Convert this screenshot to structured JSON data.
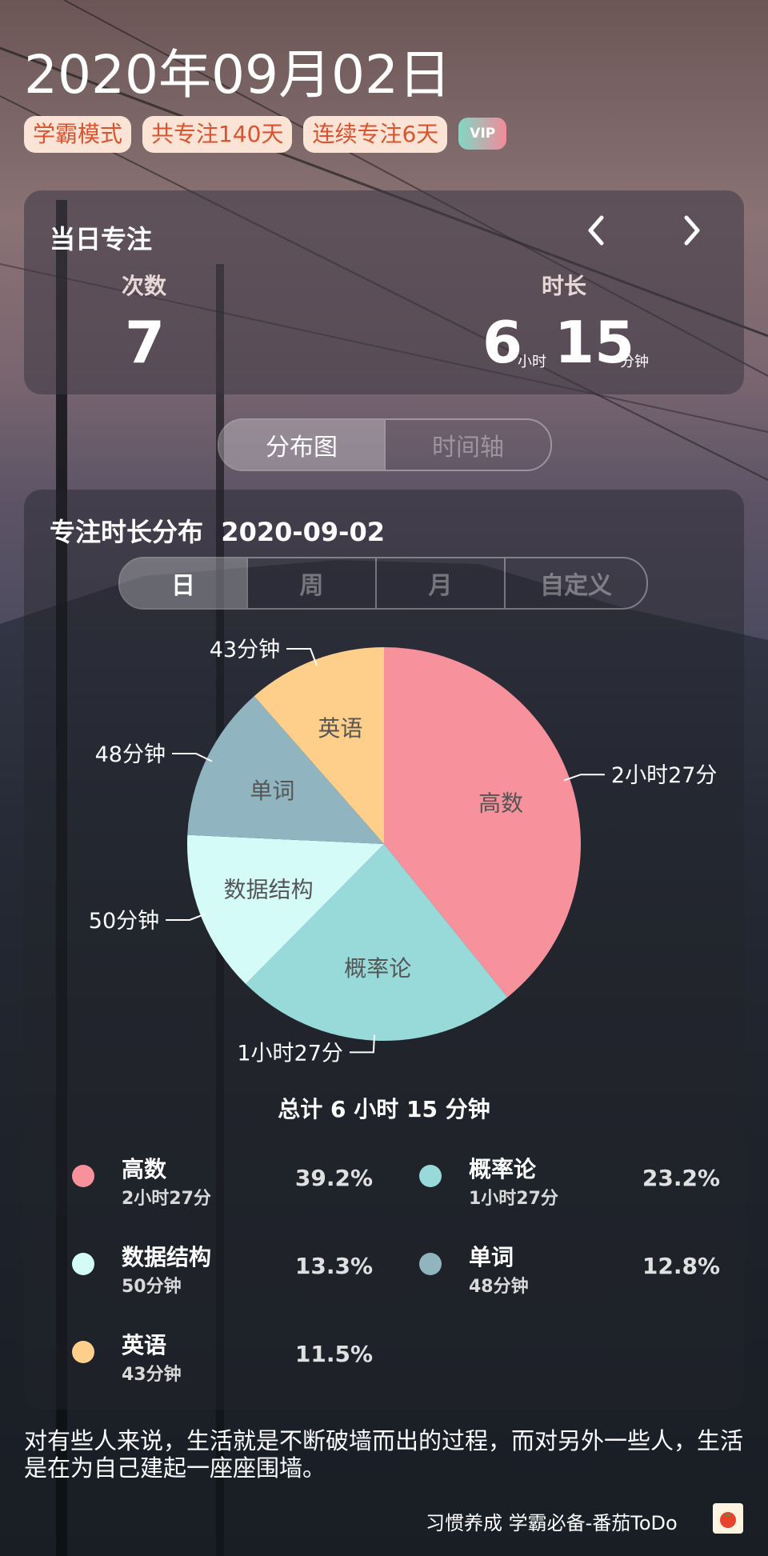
{
  "header": {
    "date_title": "2020年09月02日",
    "badges": [
      "学霸模式",
      "共专注140天",
      "连续专注6天"
    ],
    "vip": "VIP"
  },
  "daily": {
    "title": "当日专注",
    "prev_icon": "chevron-left-icon",
    "next_icon": "chevron-right-icon",
    "count_label": "次数",
    "count_value": "7",
    "duration_label": "时长",
    "hours_value": "6",
    "hours_unit": "小时",
    "minutes_value": "15",
    "minutes_unit": "分钟"
  },
  "view_tabs": {
    "items": [
      "分布图",
      "时间轴"
    ],
    "active": "分布图"
  },
  "distribution": {
    "title": "专注时长分布",
    "date": "2020-09-02",
    "period_tabs": [
      "日",
      "周",
      "月",
      "自定义"
    ],
    "active_period": "日",
    "total_text": "总计 6 小时 15 分钟"
  },
  "chart_data": {
    "type": "pie",
    "start_angle_deg": 0,
    "slices": [
      {
        "name": "高数",
        "label": "2小时27分",
        "minutes": 147,
        "percent": 39.2,
        "color": "#f7919c"
      },
      {
        "name": "概率论",
        "label": "1小时27分",
        "minutes": 87,
        "percent": 23.2,
        "color": "#98d9d9"
      },
      {
        "name": "数据结构",
        "label": "50分钟",
        "minutes": 50,
        "percent": 13.3,
        "color": "#d5fbf8"
      },
      {
        "name": "单词",
        "label": "48分钟",
        "minutes": 48,
        "percent": 12.8,
        "color": "#90b5c0"
      },
      {
        "name": "英语",
        "label": "43分钟",
        "minutes": 43,
        "percent": 11.5,
        "color": "#fdcf8a"
      }
    ]
  },
  "legend": [
    {
      "name": "高数",
      "duration": "2小时27分",
      "percent": "39.2%",
      "color": "#f7919c"
    },
    {
      "name": "概率论",
      "duration": "1小时27分",
      "percent": "23.2%",
      "color": "#98d9d9"
    },
    {
      "name": "数据结构",
      "duration": "50分钟",
      "percent": "13.3%",
      "color": "#d5fbf8"
    },
    {
      "name": "单词",
      "duration": "48分钟",
      "percent": "12.8%",
      "color": "#90b5c0"
    },
    {
      "name": "英语",
      "duration": "43分钟",
      "percent": "11.5%",
      "color": "#fdcf8a"
    }
  ],
  "quote": "对有些人来说，生活就是不断破墙而出的过程，而对另外一些人，生活是在为自己建起一座座围墙。",
  "footer": {
    "text": "习惯养成 学霸必备-番茄ToDo",
    "logo_icon": "tomato-icon"
  }
}
